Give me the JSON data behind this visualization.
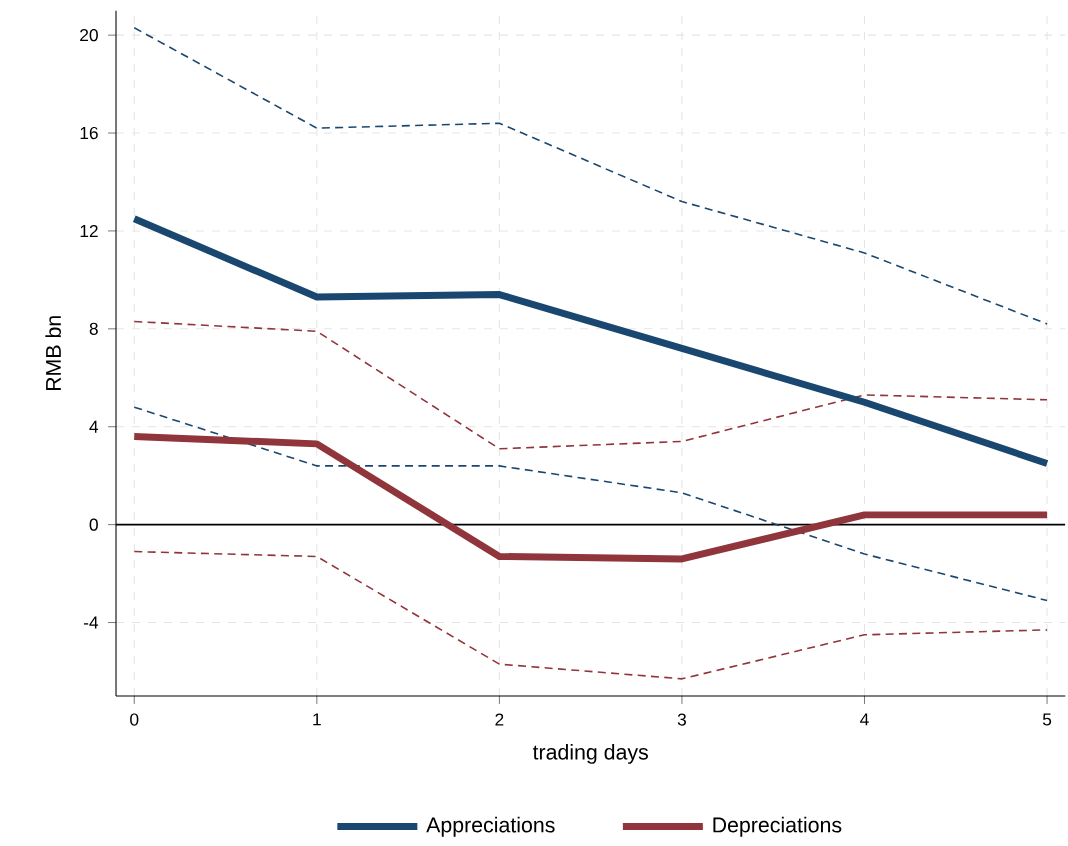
{
  "chart_data": {
    "type": "line",
    "xlabel": "trading days",
    "ylabel": "RMB bn",
    "x": [
      0,
      1,
      2,
      3,
      4,
      5
    ],
    "series": [
      {
        "name": "Appreciations",
        "color": "#1a476f",
        "line_style": "solid",
        "values": [
          12.5,
          9.3,
          9.4,
          7.2,
          5.0,
          2.5
        ]
      },
      {
        "name": "Depreciations",
        "color": "#90353b",
        "line_style": "solid",
        "values": [
          3.6,
          3.3,
          -1.3,
          -1.4,
          0.4,
          0.4
        ]
      },
      {
        "color": "#1a476f",
        "line_style": "dashed",
        "values": [
          20.3,
          16.2,
          16.4,
          13.2,
          11.1,
          8.2
        ]
      },
      {
        "color": "#1a476f",
        "line_style": "dashed",
        "values": [
          4.8,
          2.4,
          2.4,
          1.3,
          -1.2,
          -3.1
        ]
      },
      {
        "color": "#90353b",
        "line_style": "dashed",
        "values": [
          8.3,
          7.9,
          3.1,
          3.4,
          5.3,
          5.1
        ]
      },
      {
        "color": "#90353b",
        "line_style": "dashed",
        "values": [
          -1.1,
          -1.3,
          -5.7,
          -6.3,
          -4.5,
          -4.3
        ]
      }
    ],
    "xlim": [
      -0.1,
      5.1
    ],
    "ylim": [
      -7,
      21
    ],
    "xticks": [
      0,
      1,
      2,
      3,
      4,
      5
    ],
    "yticks": [
      -4,
      0,
      4,
      8,
      12,
      16,
      20
    ],
    "ref_lines": [
      {
        "axis": "y",
        "value": 0,
        "color": "#000000"
      }
    ],
    "grid": true,
    "legend": "bottom",
    "marker": "none"
  }
}
